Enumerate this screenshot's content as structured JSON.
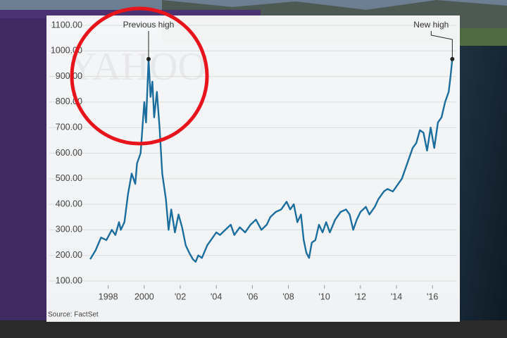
{
  "chart_data": {
    "type": "line",
    "watermark": "YAHOO",
    "source": "Source: FactSet",
    "annotations": [
      {
        "text": "Previous high",
        "x": 2000.24,
        "y": 968
      },
      {
        "text": "New high",
        "x": 2017.1,
        "y": 968
      }
    ],
    "x": [
      1997.0,
      1997.3,
      1997.6,
      1997.9,
      1998.2,
      1998.4,
      1998.6,
      1998.7,
      1998.9,
      1999.1,
      1999.3,
      1999.5,
      1999.6,
      1999.8,
      1999.9,
      2000.0,
      2000.1,
      2000.24,
      2000.35,
      2000.45,
      2000.55,
      2000.7,
      2000.85,
      2001.0,
      2001.2,
      2001.35,
      2001.5,
      2001.7,
      2001.9,
      2002.1,
      2002.3,
      2002.5,
      2002.7,
      2002.85,
      2003.0,
      2003.2,
      2003.5,
      2003.8,
      2004.0,
      2004.2,
      2004.5,
      2004.8,
      2005.0,
      2005.3,
      2005.6,
      2005.9,
      2006.2,
      2006.5,
      2006.8,
      2007.0,
      2007.3,
      2007.6,
      2007.9,
      2008.1,
      2008.3,
      2008.5,
      2008.7,
      2008.85,
      2009.0,
      2009.15,
      2009.3,
      2009.5,
      2009.7,
      2009.9,
      2010.1,
      2010.3,
      2010.6,
      2010.9,
      2011.2,
      2011.4,
      2011.6,
      2011.8,
      2012.0,
      2012.3,
      2012.5,
      2012.8,
      2013.0,
      2013.3,
      2013.5,
      2013.8,
      2014.0,
      2014.3,
      2014.5,
      2014.7,
      2014.9,
      2015.1,
      2015.3,
      2015.5,
      2015.7,
      2015.9,
      2016.1,
      2016.3,
      2016.5,
      2016.7,
      2016.9,
      2017.0,
      2017.1
    ],
    "values": [
      185,
      220,
      270,
      260,
      300,
      280,
      330,
      300,
      330,
      440,
      520,
      480,
      560,
      600,
      700,
      800,
      720,
      968,
      820,
      880,
      740,
      840,
      700,
      520,
      420,
      300,
      380,
      290,
      360,
      310,
      240,
      210,
      185,
      175,
      200,
      190,
      240,
      270,
      290,
      280,
      300,
      320,
      280,
      310,
      290,
      320,
      340,
      300,
      320,
      350,
      370,
      380,
      410,
      380,
      400,
      330,
      360,
      260,
      210,
      190,
      250,
      260,
      320,
      290,
      330,
      290,
      340,
      370,
      380,
      360,
      300,
      340,
      370,
      390,
      360,
      390,
      420,
      450,
      460,
      450,
      470,
      500,
      540,
      580,
      620,
      640,
      690,
      680,
      610,
      700,
      620,
      720,
      740,
      800,
      840,
      900,
      968
    ],
    "color": "#1b6e9e",
    "xlim": [
      1996.8,
      2017.4
    ],
    "xticks": [
      1998,
      2000,
      {
        "value": 2002,
        "label": "'02"
      },
      {
        "value": 2004,
        "label": "'04"
      },
      {
        "value": 2006,
        "label": "'06"
      },
      {
        "value": 2008,
        "label": "'08"
      },
      {
        "value": 2010,
        "label": "'10"
      },
      {
        "value": 2012,
        "label": "'12"
      },
      {
        "value": 2014,
        "label": "'14"
      },
      {
        "value": 2016,
        "label": "'16"
      }
    ],
    "ylim": [
      100,
      1100
    ],
    "yticks": [
      {
        "value": 100,
        "label": "100.00"
      },
      {
        "value": 200,
        "label": "200.00"
      },
      {
        "value": 300,
        "label": "300.00"
      },
      {
        "value": 400,
        "label": "400.00"
      },
      {
        "value": 500,
        "label": "500.00"
      },
      {
        "value": 600,
        "label": "600.00"
      },
      {
        "value": 700,
        "label": "700.00"
      },
      {
        "value": 800,
        "label": "800.00"
      },
      {
        "value": 900,
        "label": "900.00"
      },
      {
        "value": 1000,
        "label": "1000.00"
      },
      {
        "value": 1100,
        "label": "1100.00"
      }
    ],
    "grid": true
  }
}
